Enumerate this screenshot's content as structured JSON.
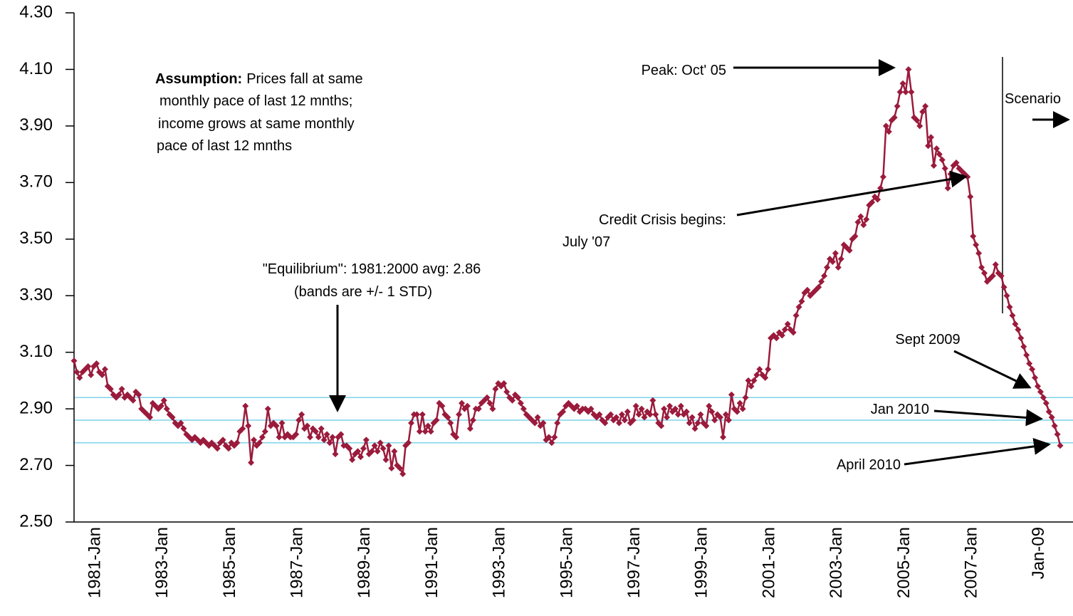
{
  "chart_data": {
    "type": "line",
    "categories": [
      "1981-Jan",
      null,
      null,
      null,
      null,
      null,
      null,
      null,
      null,
      null,
      null,
      null,
      null,
      null,
      null,
      null,
      null,
      null,
      null,
      null,
      null,
      null,
      null,
      null,
      "1983-Jan",
      null,
      null,
      null,
      null,
      null,
      null,
      null,
      null,
      null,
      null,
      null,
      null,
      null,
      null,
      null,
      null,
      null,
      null,
      null,
      null,
      null,
      null,
      null,
      "1985-Jan",
      null,
      null,
      null,
      null,
      null,
      null,
      null,
      null,
      null,
      null,
      null,
      null,
      null,
      null,
      null,
      null,
      null,
      null,
      null,
      null,
      null,
      null,
      null,
      "1987-Jan",
      null,
      null,
      null,
      null,
      null,
      null,
      null,
      null,
      null,
      null,
      null,
      null,
      null,
      null,
      null,
      null,
      null,
      null,
      null,
      null,
      null,
      null,
      null,
      "1989-Jan",
      null,
      null,
      null,
      null,
      null,
      null,
      null,
      null,
      null,
      null,
      null,
      null,
      null,
      null,
      null,
      null,
      null,
      null,
      null,
      null,
      null,
      null,
      null,
      "1991-Jan",
      null,
      null,
      null,
      null,
      null,
      null,
      null,
      null,
      null,
      null,
      null,
      null,
      null,
      null,
      null,
      null,
      null,
      null,
      null,
      null,
      null,
      null,
      null,
      "1993-Jan",
      null,
      null,
      null,
      null,
      null,
      null,
      null,
      null,
      null,
      null,
      null,
      null,
      null,
      null,
      null,
      null,
      null,
      null,
      null,
      null,
      null,
      null,
      null,
      "1995-Jan",
      null,
      null,
      null,
      null,
      null,
      null,
      null,
      null,
      null,
      null,
      null,
      null,
      null,
      null,
      null,
      null,
      null,
      null,
      null,
      null,
      null,
      null,
      null,
      "1997-Jan",
      null,
      null,
      null,
      null,
      null,
      null,
      null,
      null,
      null,
      null,
      null,
      null,
      null,
      null,
      null,
      null,
      null,
      null,
      null,
      null,
      null,
      null,
      null,
      "1999-Jan",
      null,
      null,
      null,
      null,
      null,
      null,
      null,
      null,
      null,
      null,
      null,
      null,
      null,
      null,
      null,
      null,
      null,
      null,
      null,
      null,
      null,
      null,
      null,
      "2001-Jan",
      null,
      null,
      null,
      null,
      null,
      null,
      null,
      null,
      null,
      null,
      null,
      null,
      null,
      null,
      null,
      null,
      null,
      null,
      null,
      null,
      null,
      null,
      null,
      "2003-Jan",
      null,
      null,
      null,
      null,
      null,
      null,
      null,
      null,
      null,
      null,
      null,
      null,
      null,
      null,
      null,
      null,
      null,
      null,
      null,
      null,
      null,
      null,
      null,
      "2005-Jan",
      null,
      null,
      null,
      null,
      null,
      null,
      null,
      null,
      null,
      null,
      null,
      null,
      null,
      null,
      null,
      null,
      null,
      null,
      null,
      null,
      null,
      null,
      null,
      "2007-Jan",
      null,
      null,
      null,
      null,
      null,
      null,
      null,
      null,
      null,
      null,
      null,
      null,
      null,
      null,
      null,
      null,
      null,
      null,
      null,
      null,
      null,
      null,
      null,
      "Jan-09",
      null,
      null,
      null,
      null,
      null,
      null,
      null,
      null,
      null,
      null,
      null,
      null,
      null,
      null,
      null
    ],
    "series": [
      {
        "color": "#9b1b3c",
        "values": [
          3.07,
          3.03,
          3.01,
          3.03,
          3.04,
          3.05,
          3.02,
          3.05,
          3.06,
          3.03,
          3.02,
          3.04,
          2.98,
          2.97,
          2.95,
          2.94,
          2.95,
          2.97,
          2.94,
          2.95,
          2.94,
          2.93,
          2.96,
          2.95,
          2.9,
          2.89,
          2.88,
          2.87,
          2.92,
          2.91,
          2.9,
          2.91,
          2.93,
          2.9,
          2.88,
          2.87,
          2.85,
          2.84,
          2.85,
          2.83,
          2.81,
          2.8,
          2.79,
          2.8,
          2.79,
          2.78,
          2.79,
          2.78,
          2.77,
          2.78,
          2.77,
          2.76,
          2.78,
          2.79,
          2.77,
          2.76,
          2.78,
          2.77,
          2.78,
          2.82,
          2.83,
          2.91,
          2.84,
          2.71,
          2.79,
          2.77,
          2.78,
          2.8,
          2.82,
          2.9,
          2.84,
          2.85,
          2.84,
          2.8,
          2.85,
          2.8,
          2.81,
          2.8,
          2.8,
          2.81,
          2.86,
          2.88,
          2.83,
          2.84,
          2.8,
          2.83,
          2.82,
          2.8,
          2.83,
          2.79,
          2.81,
          2.78,
          2.8,
          2.74,
          2.8,
          2.81,
          2.77,
          2.77,
          2.76,
          2.72,
          2.74,
          2.75,
          2.73,
          2.76,
          2.79,
          2.74,
          2.75,
          2.77,
          2.75,
          2.78,
          2.76,
          2.72,
          2.77,
          2.69,
          2.75,
          2.7,
          2.69,
          2.67,
          2.77,
          2.78,
          2.85,
          2.88,
          2.88,
          2.82,
          2.88,
          2.82,
          2.84,
          2.82,
          2.85,
          2.86,
          2.92,
          2.91,
          2.88,
          2.87,
          2.85,
          2.81,
          2.8,
          2.88,
          2.92,
          2.9,
          2.91,
          2.83,
          2.86,
          2.9,
          2.9,
          2.92,
          2.93,
          2.94,
          2.92,
          2.9,
          2.97,
          2.99,
          2.98,
          2.99,
          2.96,
          2.94,
          2.93,
          2.95,
          2.94,
          2.92,
          2.9,
          2.88,
          2.87,
          2.86,
          2.85,
          2.87,
          2.84,
          2.85,
          2.79,
          2.8,
          2.78,
          2.8,
          2.85,
          2.88,
          2.89,
          2.91,
          2.92,
          2.91,
          2.9,
          2.91,
          2.89,
          2.9,
          2.9,
          2.89,
          2.9,
          2.88,
          2.87,
          2.88,
          2.86,
          2.85,
          2.87,
          2.88,
          2.86,
          2.87,
          2.85,
          2.88,
          2.86,
          2.89,
          2.85,
          2.86,
          2.91,
          2.88,
          2.9,
          2.87,
          2.89,
          2.88,
          2.93,
          2.88,
          2.85,
          2.84,
          2.9,
          2.87,
          2.91,
          2.89,
          2.9,
          2.88,
          2.91,
          2.88,
          2.89,
          2.85,
          2.87,
          2.83,
          2.85,
          2.88,
          2.85,
          2.84,
          2.91,
          2.89,
          2.86,
          2.88,
          2.87,
          2.8,
          2.88,
          2.86,
          2.95,
          2.9,
          2.89,
          2.92,
          2.9,
          2.94,
          3.0,
          2.98,
          3.0,
          3.02,
          3.04,
          3.02,
          3.01,
          3.04,
          3.15,
          3.16,
          3.15,
          3.17,
          3.16,
          3.18,
          3.2,
          3.18,
          3.17,
          3.23,
          3.26,
          3.28,
          3.31,
          3.32,
          3.3,
          3.31,
          3.32,
          3.33,
          3.35,
          3.37,
          3.4,
          3.43,
          3.42,
          3.45,
          3.4,
          3.43,
          3.48,
          3.47,
          3.46,
          3.5,
          3.51,
          3.56,
          3.58,
          3.55,
          3.57,
          3.62,
          3.63,
          3.65,
          3.64,
          3.68,
          3.72,
          3.9,
          3.88,
          3.92,
          3.93,
          3.97,
          4.02,
          4.05,
          4.02,
          4.1,
          4.02,
          3.93,
          3.92,
          3.9,
          3.95,
          3.97,
          3.83,
          3.86,
          3.76,
          3.82,
          3.8,
          3.78,
          3.75,
          3.68,
          3.73,
          3.76,
          3.77,
          3.75,
          3.74,
          3.73,
          3.72,
          3.65,
          3.51,
          3.48,
          3.45,
          3.4,
          3.38,
          3.35,
          3.36,
          3.37,
          3.41,
          3.38,
          3.37,
          3.33,
          3.3,
          3.26,
          3.23,
          3.2,
          3.18,
          3.15,
          3.12,
          3.09,
          3.06,
          3.04,
          3.01,
          2.98,
          2.96,
          2.94,
          2.92,
          2.89,
          2.87,
          2.84,
          2.81,
          2.77
        ]
      }
    ],
    "ylim": [
      2.5,
      4.3
    ],
    "yticks": [
      {
        "value": 2.5,
        "label": "2.50"
      },
      {
        "value": 2.7,
        "label": "2.70"
      },
      {
        "value": 2.9,
        "label": "2.90"
      },
      {
        "value": 3.1,
        "label": "3.10"
      },
      {
        "value": 3.3,
        "label": "3.30"
      },
      {
        "value": 3.5,
        "label": "3.50"
      },
      {
        "value": 3.7,
        "label": "3.70"
      },
      {
        "value": 3.9,
        "label": "3.90"
      },
      {
        "value": 4.1,
        "label": "4.10"
      },
      {
        "value": 4.3,
        "label": "4.30"
      }
    ],
    "bands": [
      2.94,
      2.86,
      2.78
    ],
    "band_color": "#7fd3e8",
    "assumption": {
      "label": "Assumption:",
      "lines": [
        "Prices fall at same",
        "monthly pace of last 12 mnths;",
        "income grows at same monthly",
        "pace of last 12 mnths"
      ]
    },
    "annotations": [
      "Peak: Oct' 05",
      "Credit Crisis begins:",
      "July '07",
      "\"Equilibrium\": 1981:2000 avg: 2.86",
      "(bands are +/- 1 STD)",
      "Sept 2009",
      "Jan 2010",
      "April 2010",
      "Scenario"
    ]
  }
}
